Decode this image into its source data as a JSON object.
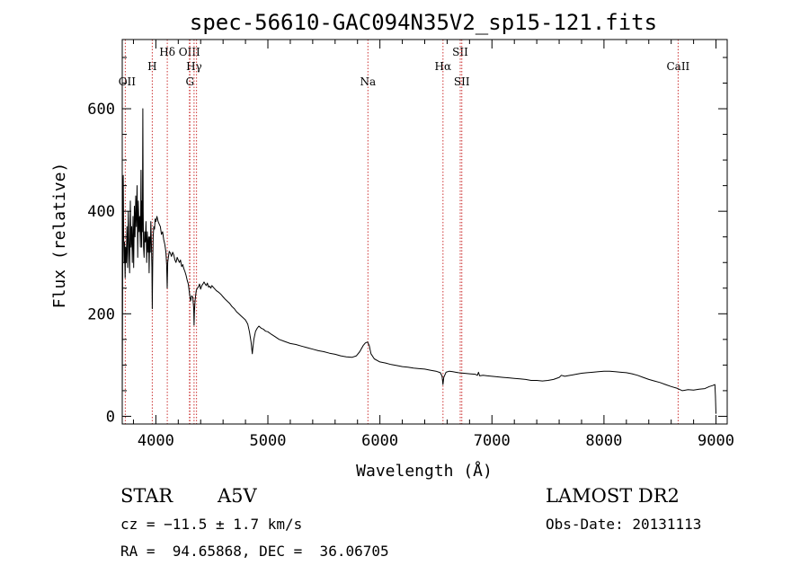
{
  "chart_data": {
    "type": "line",
    "title": "spec-56610-GAC094N35V2_sp15-121.fits",
    "xlabel": "Wavelength (Å)",
    "ylabel": "Flux (relative)",
    "xlim": [
      3700,
      9100
    ],
    "ylim": [
      -15,
      735
    ],
    "x_ticks": [
      4000,
      5000,
      6000,
      7000,
      8000,
      9000
    ],
    "x_tick_labels": [
      "4000",
      "5000",
      "6000",
      "7000",
      "8000",
      "9000"
    ],
    "y_ticks": [
      0,
      200,
      400,
      600
    ],
    "y_tick_labels": [
      "0",
      "200",
      "400",
      "600"
    ],
    "grid": false,
    "line_color": "#000000",
    "marker_color": "#cc3333",
    "series": [
      {
        "points": [
          [
            3700,
            40
          ],
          [
            3703,
            240
          ],
          [
            3706,
            430
          ],
          [
            3709,
            470
          ],
          [
            3712,
            360
          ],
          [
            3716,
            300
          ],
          [
            3720,
            340
          ],
          [
            3726,
            270
          ],
          [
            3730,
            330
          ],
          [
            3736,
            300
          ],
          [
            3742,
            370
          ],
          [
            3748,
            290
          ],
          [
            3754,
            400
          ],
          [
            3760,
            330
          ],
          [
            3766,
            280
          ],
          [
            3772,
            420
          ],
          [
            3778,
            330
          ],
          [
            3784,
            370
          ],
          [
            3790,
            300
          ],
          [
            3796,
            390
          ],
          [
            3802,
            290
          ],
          [
            3808,
            410
          ],
          [
            3814,
            350
          ],
          [
            3820,
            430
          ],
          [
            3826,
            370
          ],
          [
            3832,
            450
          ],
          [
            3838,
            310
          ],
          [
            3844,
            420
          ],
          [
            3850,
            360
          ],
          [
            3856,
            390
          ],
          [
            3862,
            330
          ],
          [
            3868,
            480
          ],
          [
            3870,
            380
          ],
          [
            3873,
            330
          ],
          [
            3876,
            420
          ],
          [
            3880,
            360
          ],
          [
            3884,
            600
          ],
          [
            3887,
            400
          ],
          [
            3890,
            330
          ],
          [
            3895,
            310
          ],
          [
            3900,
            360
          ],
          [
            3906,
            340
          ],
          [
            3912,
            380
          ],
          [
            3918,
            300
          ],
          [
            3924,
            360
          ],
          [
            3930,
            320
          ],
          [
            3936,
            350
          ],
          [
            3940,
            280
          ],
          [
            3945,
            350
          ],
          [
            3950,
            320
          ],
          [
            3955,
            380
          ],
          [
            3960,
            340
          ],
          [
            3965,
            290
          ],
          [
            3968,
            210
          ],
          [
            3972,
            300
          ],
          [
            3976,
            350
          ],
          [
            3982,
            370
          ],
          [
            3988,
            365
          ],
          [
            3994,
            385
          ],
          [
            4000,
            380
          ],
          [
            4010,
            390
          ],
          [
            4020,
            380
          ],
          [
            4030,
            375
          ],
          [
            4040,
            370
          ],
          [
            4050,
            355
          ],
          [
            4060,
            360
          ],
          [
            4070,
            345
          ],
          [
            4080,
            335
          ],
          [
            4090,
            320
          ],
          [
            4096,
            295
          ],
          [
            4101,
            250
          ],
          [
            4106,
            300
          ],
          [
            4112,
            310
          ],
          [
            4120,
            322
          ],
          [
            4130,
            318
          ],
          [
            4140,
            312
          ],
          [
            4150,
            320
          ],
          [
            4160,
            315
          ],
          [
            4170,
            305
          ],
          [
            4180,
            300
          ],
          [
            4190,
            310
          ],
          [
            4200,
            305
          ],
          [
            4210,
            300
          ],
          [
            4220,
            305
          ],
          [
            4230,
            292
          ],
          [
            4240,
            296
          ],
          [
            4250,
            288
          ],
          [
            4260,
            282
          ],
          [
            4270,
            275
          ],
          [
            4280,
            265
          ],
          [
            4290,
            258
          ],
          [
            4300,
            240
          ],
          [
            4310,
            225
          ],
          [
            4320,
            235
          ],
          [
            4330,
            232
          ],
          [
            4338,
            210
          ],
          [
            4341,
            178
          ],
          [
            4344,
            205
          ],
          [
            4350,
            225
          ],
          [
            4360,
            245
          ],
          [
            4370,
            250
          ],
          [
            4380,
            252
          ],
          [
            4390,
            258
          ],
          [
            4400,
            248
          ],
          [
            4410,
            255
          ],
          [
            4420,
            258
          ],
          [
            4430,
            262
          ],
          [
            4440,
            258
          ],
          [
            4450,
            255
          ],
          [
            4460,
            260
          ],
          [
            4470,
            252
          ],
          [
            4480,
            254
          ],
          [
            4490,
            250
          ],
          [
            4500,
            255
          ],
          [
            4520,
            250
          ],
          [
            4540,
            245
          ],
          [
            4560,
            242
          ],
          [
            4580,
            238
          ],
          [
            4600,
            233
          ],
          [
            4620,
            228
          ],
          [
            4640,
            224
          ],
          [
            4660,
            220
          ],
          [
            4680,
            214
          ],
          [
            4700,
            210
          ],
          [
            4720,
            204
          ],
          [
            4740,
            200
          ],
          [
            4760,
            196
          ],
          [
            4780,
            192
          ],
          [
            4800,
            188
          ],
          [
            4820,
            180
          ],
          [
            4835,
            165
          ],
          [
            4850,
            145
          ],
          [
            4858,
            128
          ],
          [
            4861,
            122
          ],
          [
            4864,
            130
          ],
          [
            4875,
            150
          ],
          [
            4890,
            166
          ],
          [
            4905,
            172
          ],
          [
            4920,
            176
          ],
          [
            4940,
            172
          ],
          [
            4960,
            170
          ],
          [
            4980,
            166
          ],
          [
            5000,
            165
          ],
          [
            5030,
            160
          ],
          [
            5060,
            156
          ],
          [
            5100,
            150
          ],
          [
            5150,
            146
          ],
          [
            5200,
            142
          ],
          [
            5250,
            140
          ],
          [
            5300,
            137
          ],
          [
            5350,
            134
          ],
          [
            5400,
            131
          ],
          [
            5450,
            128
          ],
          [
            5500,
            126
          ],
          [
            5550,
            123
          ],
          [
            5600,
            121
          ],
          [
            5650,
            118
          ],
          [
            5700,
            116
          ],
          [
            5750,
            115
          ],
          [
            5790,
            118
          ],
          [
            5820,
            126
          ],
          [
            5850,
            138
          ],
          [
            5870,
            143
          ],
          [
            5890,
            145
          ],
          [
            5905,
            138
          ],
          [
            5920,
            122
          ],
          [
            5950,
            112
          ],
          [
            6000,
            106
          ],
          [
            6050,
            104
          ],
          [
            6100,
            101
          ],
          [
            6150,
            99
          ],
          [
            6200,
            97
          ],
          [
            6250,
            96
          ],
          [
            6300,
            94
          ],
          [
            6350,
            93
          ],
          [
            6400,
            92
          ],
          [
            6450,
            90
          ],
          [
            6500,
            88
          ],
          [
            6540,
            85
          ],
          [
            6555,
            78
          ],
          [
            6563,
            62
          ],
          [
            6570,
            76
          ],
          [
            6590,
            86
          ],
          [
            6620,
            88
          ],
          [
            6650,
            87
          ],
          [
            6700,
            85
          ],
          [
            6750,
            84
          ],
          [
            6800,
            83
          ],
          [
            6850,
            82
          ],
          [
            6870,
            80
          ],
          [
            6880,
            86
          ],
          [
            6890,
            79
          ],
          [
            6920,
            80
          ],
          [
            6960,
            79
          ],
          [
            7000,
            78
          ],
          [
            7050,
            77
          ],
          [
            7100,
            76
          ],
          [
            7150,
            75
          ],
          [
            7200,
            74
          ],
          [
            7250,
            73
          ],
          [
            7300,
            72
          ],
          [
            7350,
            70
          ],
          [
            7400,
            70
          ],
          [
            7450,
            69
          ],
          [
            7500,
            70
          ],
          [
            7550,
            72
          ],
          [
            7600,
            76
          ],
          [
            7620,
            80
          ],
          [
            7650,
            78
          ],
          [
            7700,
            80
          ],
          [
            7750,
            82
          ],
          [
            7800,
            84
          ],
          [
            7850,
            85
          ],
          [
            7900,
            86
          ],
          [
            7950,
            87
          ],
          [
            8000,
            88
          ],
          [
            8050,
            88
          ],
          [
            8100,
            87
          ],
          [
            8150,
            86
          ],
          [
            8200,
            85
          ],
          [
            8250,
            83
          ],
          [
            8300,
            80
          ],
          [
            8350,
            76
          ],
          [
            8400,
            72
          ],
          [
            8450,
            69
          ],
          [
            8500,
            66
          ],
          [
            8550,
            62
          ],
          [
            8600,
            58
          ],
          [
            8650,
            55
          ],
          [
            8700,
            50
          ],
          [
            8750,
            52
          ],
          [
            8800,
            51
          ],
          [
            8850,
            53
          ],
          [
            8900,
            54
          ],
          [
            8940,
            58
          ],
          [
            8970,
            60
          ],
          [
            8990,
            62
          ],
          [
            8995,
            40
          ],
          [
            9000,
            5
          ]
        ]
      }
    ],
    "lines": [
      {
        "label": "OII",
        "x": 3727,
        "row": 3
      },
      {
        "label": "H",
        "x": 3968,
        "row": 1
      },
      {
        "label": "Hδ",
        "x": 4102,
        "row": 0
      },
      {
        "label": "OIII",
        "x": 4300,
        "row": 0
      },
      {
        "label": "Hγ",
        "x": 4341,
        "row": 1
      },
      {
        "label": "G",
        "x": 4304,
        "row": 2
      },
      {
        "label": "OIII",
        "x": 4363,
        "row": -1
      },
      {
        "label": "Na",
        "x": 5893,
        "row": 2
      },
      {
        "label": "Hα",
        "x": 6563,
        "row": 1
      },
      {
        "label": "SII",
        "x": 6717,
        "row": 0
      },
      {
        "label": "SII",
        "x": 6731,
        "row": 2
      },
      {
        "label": "CaII",
        "x": 8662,
        "row": 1
      }
    ]
  },
  "info": {
    "object_class": "STAR",
    "subclass": "A5V",
    "survey": "LAMOST DR2",
    "redshift": "cz = −11.5 ± 1.7 km/s",
    "obs_date": "Obs-Date: 20131113",
    "coords": "RA =  94.65868, DEC =  36.06705"
  }
}
